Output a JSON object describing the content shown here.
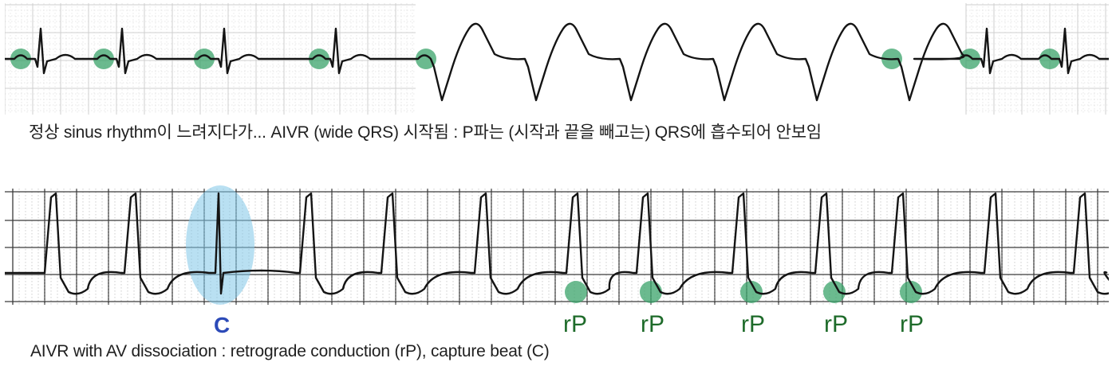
{
  "captions": {
    "top": "정상 sinus rhythm이 느려지다가... AIVR (wide QRS) 시작됨 : P파는 (시작과 끝을 빼고는) QRS에 흡수되어 안보임",
    "bottom": "AIVR with AV dissociation : retrograde conduction (rP), capture beat (C)"
  },
  "labels": {
    "capture": "C",
    "retro": [
      "rP",
      "rP",
      "rP",
      "rP",
      "rP"
    ]
  },
  "colors": {
    "trace": "#141414",
    "grid": "#a8a8a8",
    "p_marker": "#3aa36a",
    "capture_highlight": "#7fc6e8",
    "capture_label": "#2c4ab8",
    "retro_label": "#1e6b2a"
  }
}
